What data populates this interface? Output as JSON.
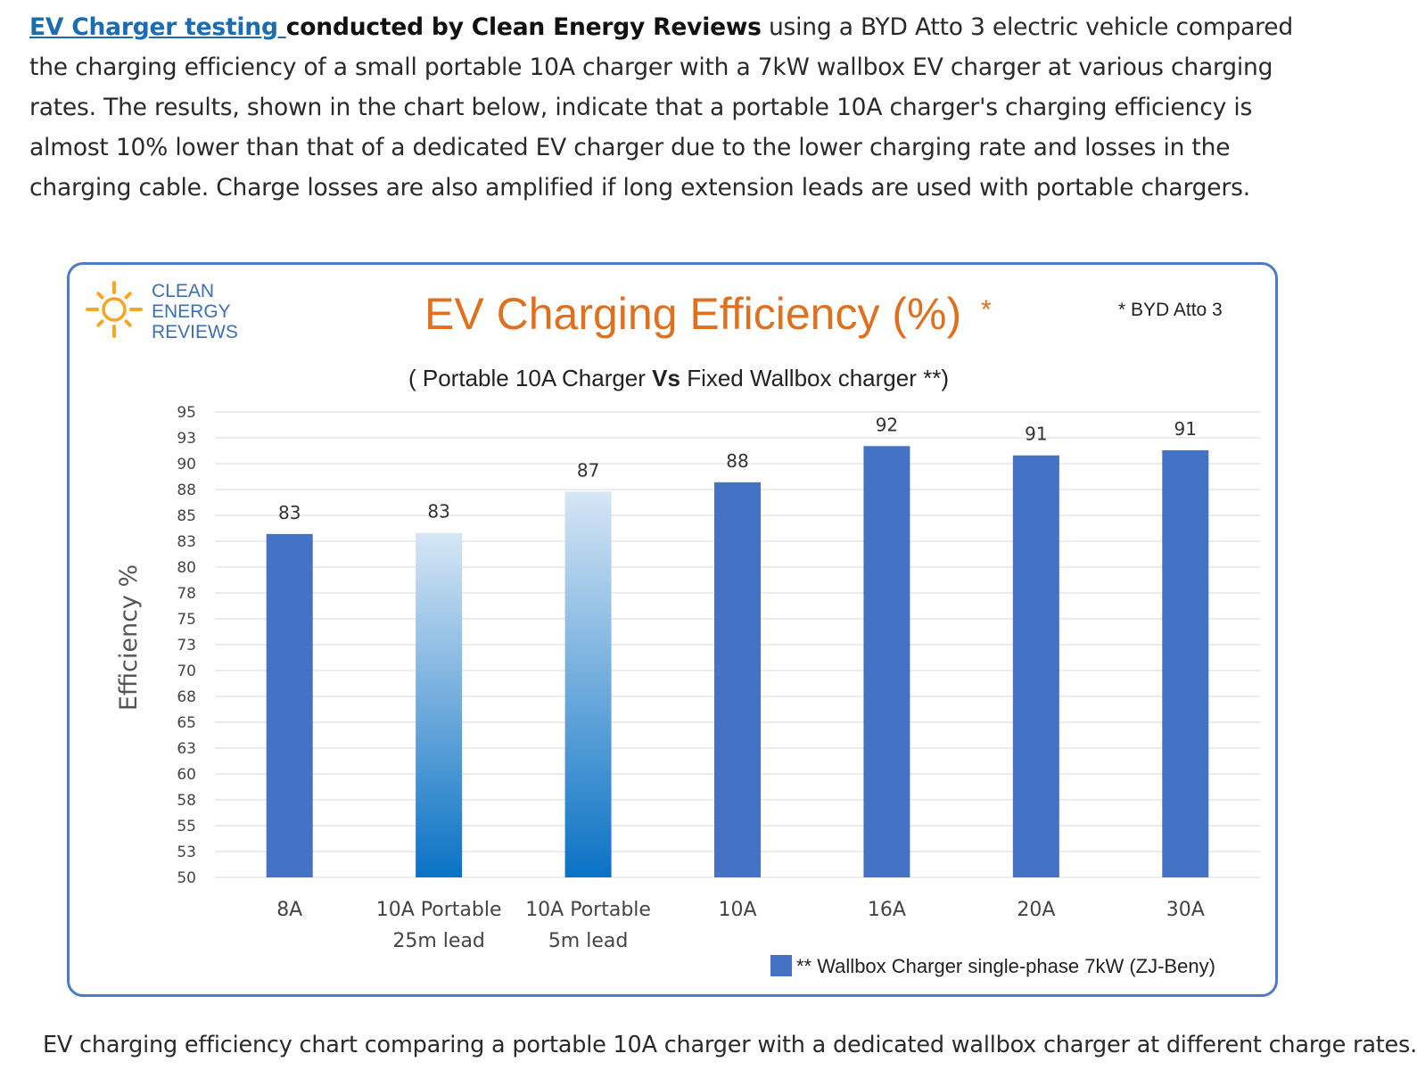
{
  "intro": {
    "link_text": "EV Charger testing ",
    "bold_text": "conducted by Clean Energy Reviews",
    "rest_text": " using a BYD Atto 3 electric vehicle compared the charging efficiency of a small portable 10A charger with a 7kW wallbox EV charger at various charging rates. The results, shown in the chart below, indicate that a portable 10A charger's charging efficiency is almost 10% lower than that of a dedicated EV charger due to the lower charging rate and losses in the charging cable. Charge losses are also amplified if long extension leads are used with portable chargers."
  },
  "logo": {
    "line1": "CLEAN",
    "line2": "ENERGY",
    "line3": "REVIEWS"
  },
  "chart_data": {
    "type": "bar",
    "title": "EV Charging Efficiency (%)",
    "title_mark": "*",
    "note": "* BYD Atto 3",
    "subtitle_pre": "( Portable 10A Charger ",
    "subtitle_bold": "Vs",
    "subtitle_post": " Fixed Wallbox charger **)",
    "ylabel": "Efficiency %",
    "xlabel": "",
    "ylim": [
      50,
      95
    ],
    "yticks": [
      "95",
      "93",
      "90",
      "88",
      "85",
      "83",
      "80",
      "78",
      "75",
      "73",
      "70",
      "68",
      "65",
      "63",
      "60",
      "58",
      "55",
      "53",
      "50"
    ],
    "categories": [
      {
        "line1": "8A",
        "line2": ""
      },
      {
        "line1": "10A Portable",
        "line2": "25m lead"
      },
      {
        "line1": "10A Portable",
        "line2": "5m lead"
      },
      {
        "line1": "10A",
        "line2": ""
      },
      {
        "line1": "16A",
        "line2": ""
      },
      {
        "line1": "20A",
        "line2": ""
      },
      {
        "line1": "30A",
        "line2": ""
      }
    ],
    "values": [
      83.2,
      83.3,
      87.3,
      88.2,
      91.7,
      90.8,
      91.3
    ],
    "value_labels": [
      "83",
      "83",
      "87",
      "88",
      "92",
      "91",
      "91"
    ],
    "series_kind": [
      "wallbox",
      "portable",
      "portable",
      "wallbox",
      "wallbox",
      "wallbox",
      "wallbox"
    ],
    "legend": "** Wallbox Charger single-phase 7kW (ZJ-Beny)",
    "legend_position": "bottom-right",
    "colors": {
      "wallbox": "#4472c4",
      "portable_top": "#d6e6f5",
      "portable_bottom": "#0a72c4",
      "title": "#e0701e",
      "grid": "#d9d9d9",
      "sun": "#f5a623"
    }
  },
  "caption": "EV charging efficiency chart comparing a portable 10A charger with a dedicated wallbox charger at different charge rates."
}
